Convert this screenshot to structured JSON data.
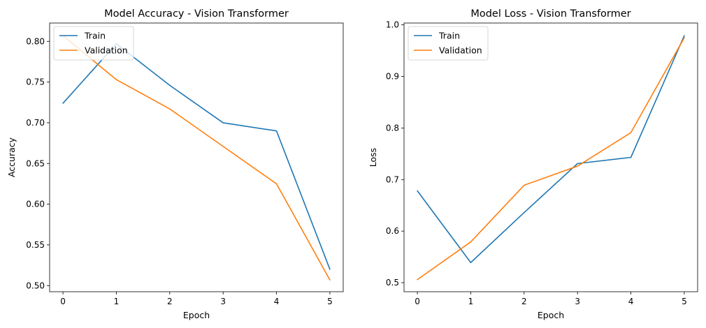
{
  "chart_data": [
    {
      "type": "line",
      "title": "Model Accuracy - Vision Transformer",
      "xlabel": "Epoch",
      "ylabel": "Accuracy",
      "x": [
        0,
        1,
        2,
        3,
        4,
        5
      ],
      "xticks": [
        "0",
        "1",
        "2",
        "3",
        "4",
        "5"
      ],
      "yticks": [
        "0.50",
        "0.55",
        "0.60",
        "0.65",
        "0.70",
        "0.75",
        "0.80"
      ],
      "xlim": [
        -0.25,
        5.25
      ],
      "ylim": [
        0.4925,
        0.8225
      ],
      "grid": false,
      "legend_position": "top-left",
      "series": [
        {
          "name": "Train",
          "color": "#1f77b4",
          "values": [
            0.724,
            0.797,
            0.746,
            0.7,
            0.69,
            0.52
          ]
        },
        {
          "name": "Validation",
          "color": "#ff7f0e",
          "values": [
            0.807,
            0.753,
            0.717,
            0.671,
            0.625,
            0.507
          ]
        }
      ]
    },
    {
      "type": "line",
      "title": "Model Loss - Vision Transformer",
      "xlabel": "Epoch",
      "ylabel": "Loss",
      "x": [
        0,
        1,
        2,
        3,
        4,
        5
      ],
      "xticks": [
        "0",
        "1",
        "2",
        "3",
        "4",
        "5"
      ],
      "yticks": [
        "0.5",
        "0.6",
        "0.7",
        "0.8",
        "0.9",
        "1.0"
      ],
      "xlim": [
        -0.25,
        5.25
      ],
      "ylim": [
        0.4825,
        1.0035
      ],
      "grid": false,
      "legend_position": "top-left",
      "series": [
        {
          "name": "Train",
          "color": "#1f77b4",
          "values": [
            0.678,
            0.539,
            0.636,
            0.731,
            0.743,
            0.979
          ]
        },
        {
          "name": "Validation",
          "color": "#ff7f0e",
          "values": [
            0.506,
            0.579,
            0.689,
            0.726,
            0.791,
            0.975
          ]
        }
      ]
    }
  ]
}
